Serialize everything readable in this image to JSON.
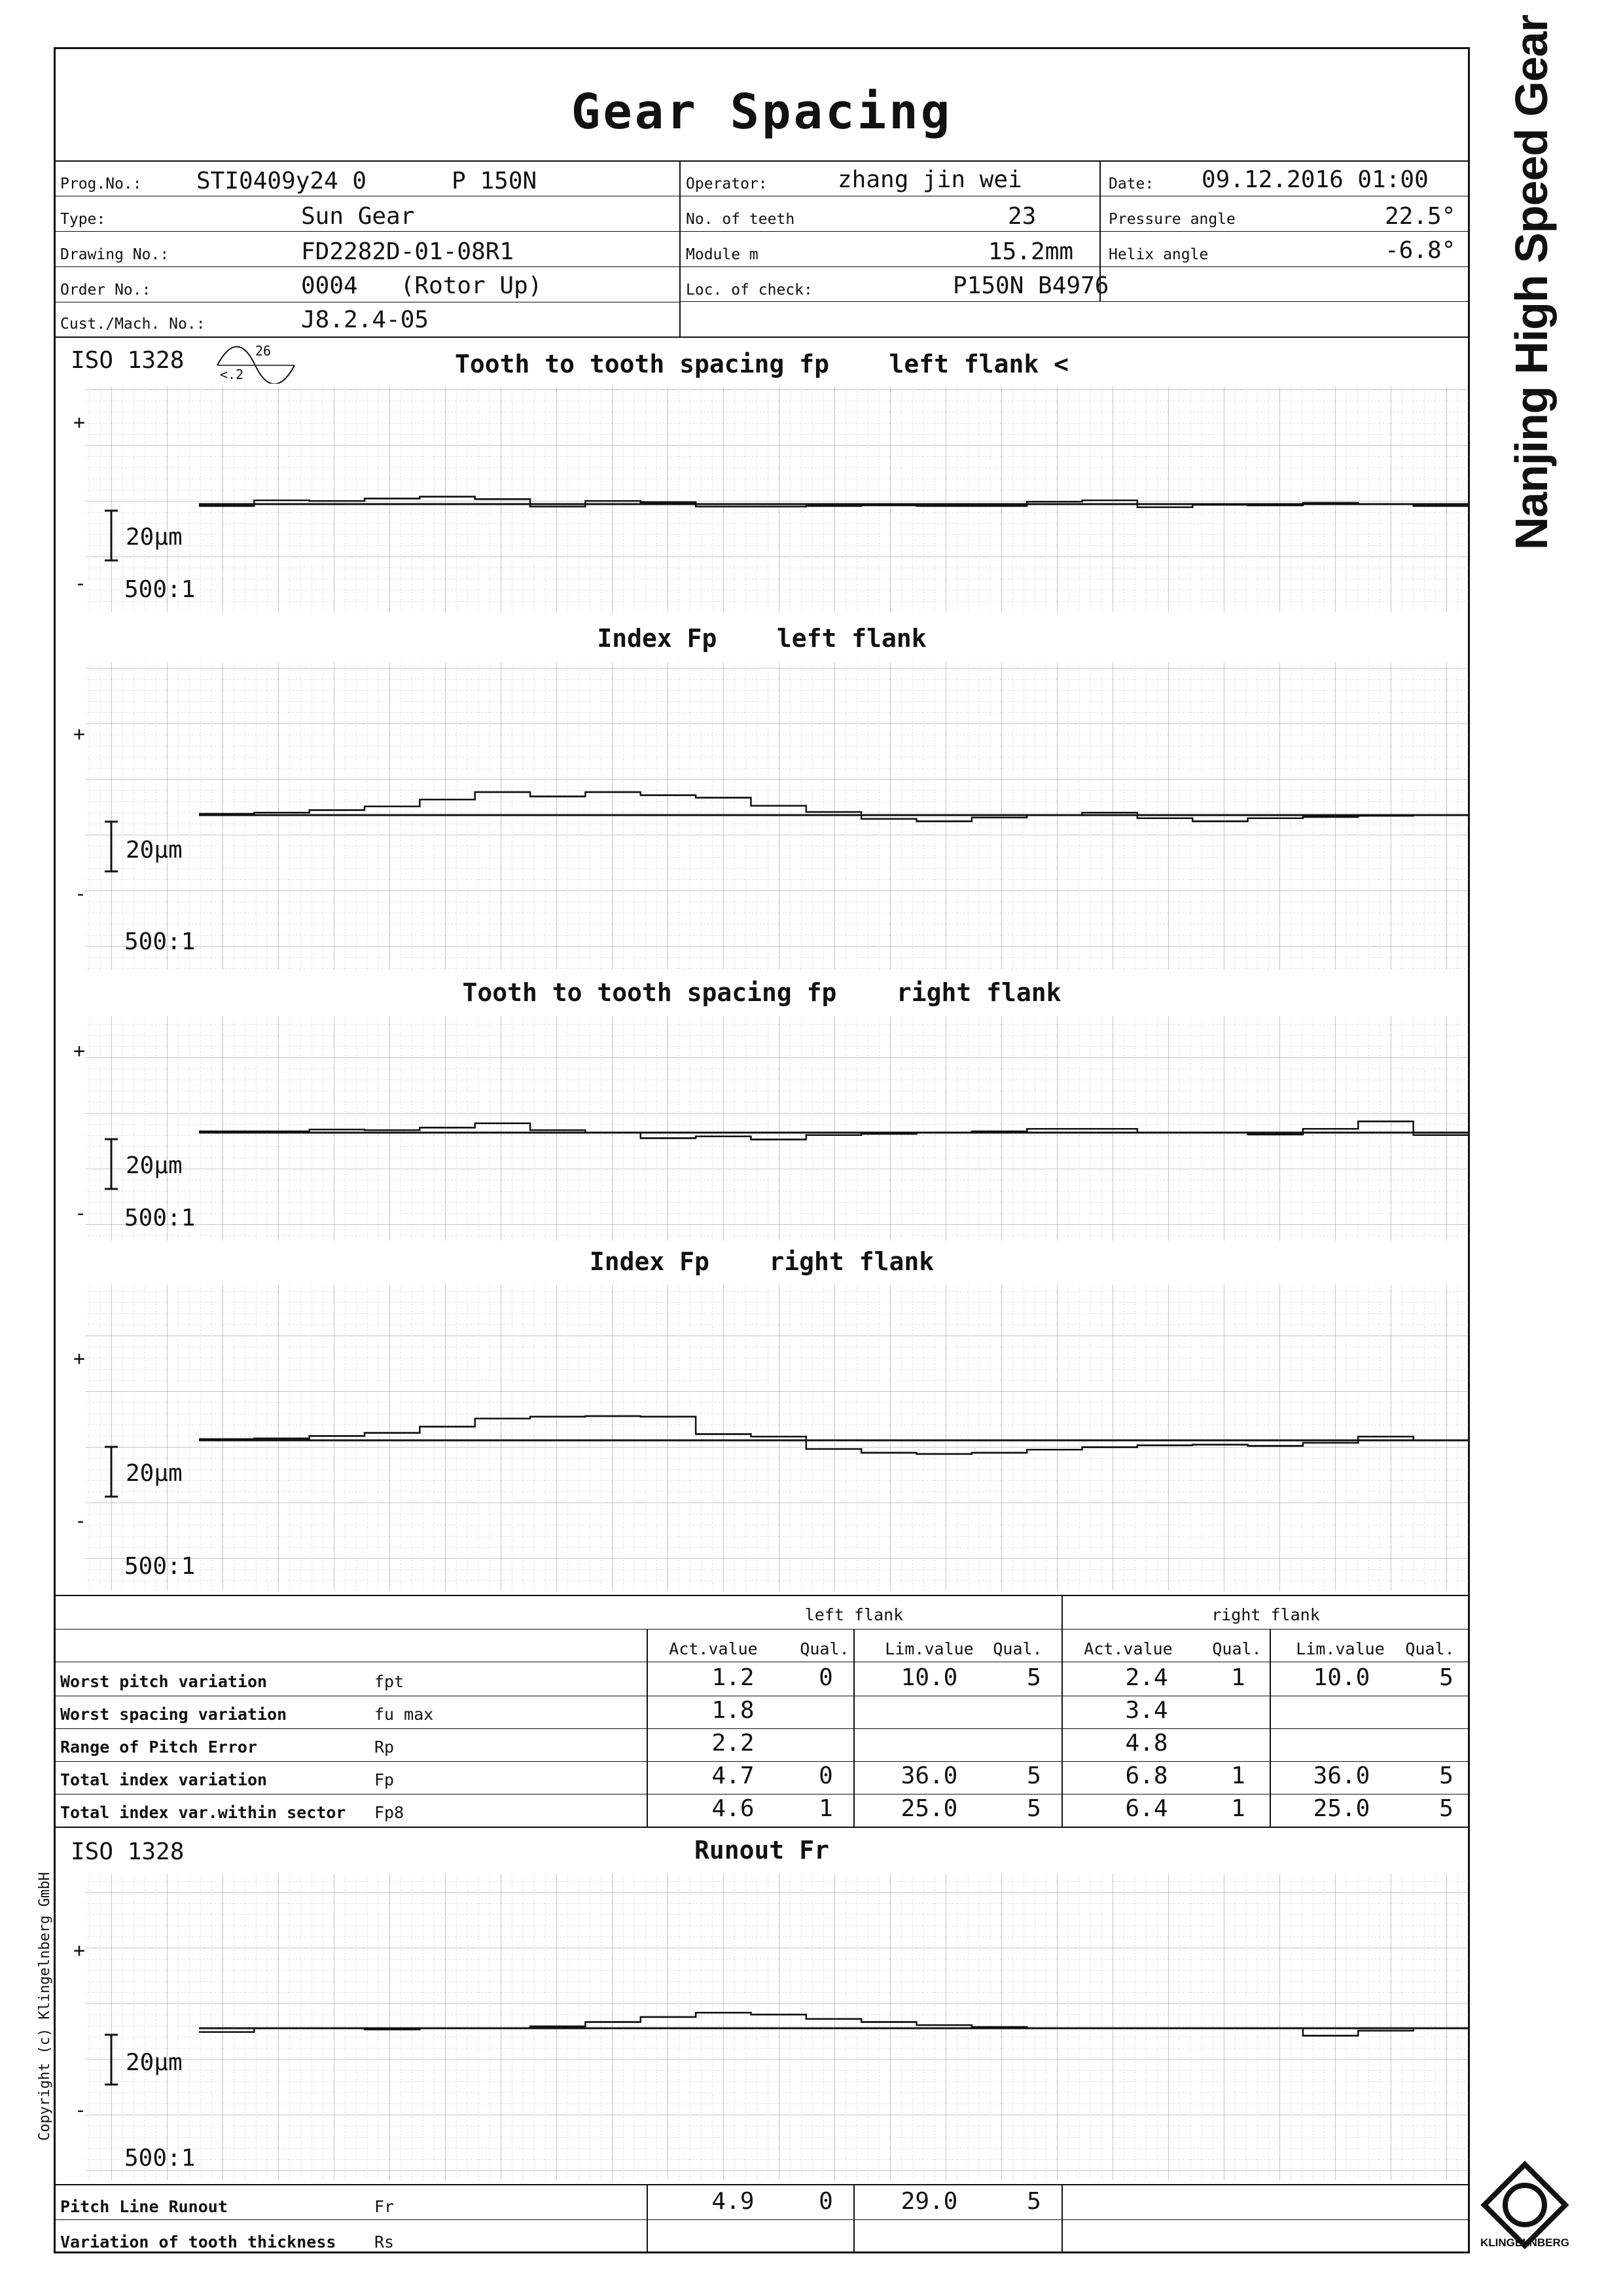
{
  "brand": "Nanjing High Speed Gear",
  "copyright": "Copyright (c) Klingelnberg GmbH",
  "logo_text": "KLINGELNBERG",
  "title": "Gear Spacing",
  "header": {
    "prog_no": {
      "label": "Prog.No.:",
      "value": "STI0409y24 0      P 150N"
    },
    "type": {
      "label": "Type:",
      "value": "Sun Gear"
    },
    "drawing_no": {
      "label": "Drawing No.:",
      "value": "FD2282D-01-08R1"
    },
    "order_no": {
      "label": "Order No.:",
      "value": "0004   (Rotor Up)"
    },
    "cust_mach": {
      "label": "Cust./Mach. No.:",
      "value": "J8.2.4-05"
    },
    "operator": {
      "label": "Operator:",
      "value": "zhang jin wei"
    },
    "teeth": {
      "label": "No. of teeth",
      "value": "23"
    },
    "module": {
      "label": "Module m",
      "value": "15.2mm"
    },
    "loc_check": {
      "label": "Loc. of check:",
      "value": "P150N B4976"
    },
    "date": {
      "label": "Date:",
      "value": "09.12.2016 01:00"
    },
    "pressure_angle": {
      "label": "Pressure angle",
      "value": "22.5°"
    },
    "helix_angle": {
      "label": "Helix angle",
      "value": "-6.8°"
    }
  },
  "iso_label": "ISO 1328",
  "iso_symbol_top": "26",
  "iso_symbol_bottom": "<.2",
  "plus": "+",
  "minus": "-",
  "scale_label": "20µm",
  "ratio_label": "500:1",
  "chart_data": [
    {
      "type": "line",
      "title": "Tooth to tooth spacing fp    left flank <",
      "unit": "µm",
      "values": [
        -0.3,
        0.6,
        0.5,
        0.9,
        1.2,
        0.8,
        -0.4,
        0.5,
        0.3,
        -0.4,
        -0.4,
        -0.3,
        -0.2,
        -0.3,
        -0.3,
        0.4,
        0.6,
        -0.5,
        -0.1,
        -0.2,
        0.2,
        0.0,
        -0.3
      ]
    },
    {
      "type": "line",
      "title": "Index Fp    left flank",
      "unit": "µm",
      "values": [
        0.2,
        0.4,
        0.8,
        1.4,
        2.5,
        3.7,
        3.0,
        3.7,
        3.2,
        2.8,
        1.5,
        0.5,
        -0.6,
        -1.0,
        -0.4,
        0.0,
        0.4,
        -0.5,
        -1.0,
        -0.5,
        -0.3,
        -0.1,
        0.0
      ]
    },
    {
      "type": "line",
      "title": "Tooth to tooth spacing fp    right flank",
      "unit": "µm",
      "values": [
        0.2,
        0.2,
        0.5,
        0.4,
        0.8,
        1.5,
        0.4,
        0.0,
        -0.9,
        -0.6,
        -1.1,
        -0.4,
        -0.2,
        0.0,
        0.2,
        0.6,
        0.6,
        0.0,
        0.0,
        -0.3,
        0.6,
        1.8,
        -0.4
      ]
    },
    {
      "type": "line",
      "title": "Index Fp    right flank",
      "unit": "µm",
      "values": [
        0.2,
        0.3,
        0.7,
        1.2,
        2.2,
        3.5,
        3.8,
        3.9,
        3.8,
        1.0,
        0.6,
        -1.4,
        -2.0,
        -2.2,
        -2.0,
        -1.5,
        -1.1,
        -0.8,
        -0.7,
        -0.9,
        -0.4,
        0.6,
        0.0
      ]
    },
    {
      "type": "line",
      "title": "Runout Fr",
      "unit": "µm",
      "values": [
        -0.6,
        0.0,
        0.0,
        -0.2,
        0.0,
        0.0,
        0.3,
        1.0,
        1.8,
        2.5,
        2.2,
        1.5,
        1.0,
        0.5,
        0.2,
        0.0,
        0.0,
        0.0,
        0.0,
        0.0,
        -1.2,
        -0.4,
        0.0
      ]
    }
  ],
  "results": {
    "left_flank_label": "left flank",
    "right_flank_label": "right flank",
    "col_headers": [
      "Act.value",
      "Qual.",
      "Lim.value",
      "Qual.",
      "Act.value",
      "Qual.",
      "Lim.value",
      "Qual."
    ],
    "rows": [
      {
        "name": "Worst pitch variation",
        "sym": "fpt",
        "cells": [
          "1.2",
          "0",
          "10.0",
          "5",
          "2.4",
          "1",
          "10.0",
          "5"
        ]
      },
      {
        "name": "Worst spacing variation",
        "sym": "fu max",
        "cells": [
          "1.8",
          "",
          "",
          "",
          "3.4",
          "",
          "",
          ""
        ]
      },
      {
        "name": "Range of Pitch Error",
        "sym": "Rp",
        "cells": [
          "2.2",
          "",
          "",
          "",
          "4.8",
          "",
          "",
          ""
        ]
      },
      {
        "name": "Total index variation",
        "sym": "Fp",
        "cells": [
          "4.7",
          "0",
          "36.0",
          "5",
          "6.8",
          "1",
          "36.0",
          "5"
        ]
      },
      {
        "name": "Total index var.within sector",
        "sym": "Fp8",
        "cells": [
          "4.6",
          "1",
          "25.0",
          "5",
          "6.4",
          "1",
          "25.0",
          "5"
        ]
      }
    ]
  },
  "runout": {
    "rows": [
      {
        "name": "Pitch Line Runout",
        "sym": "Fr",
        "cells": [
          "4.9",
          "0",
          "29.0",
          "5"
        ]
      },
      {
        "name": "Variation of tooth thickness",
        "sym": "Rs",
        "cells": [
          "",
          "",
          "",
          ""
        ]
      }
    ]
  }
}
